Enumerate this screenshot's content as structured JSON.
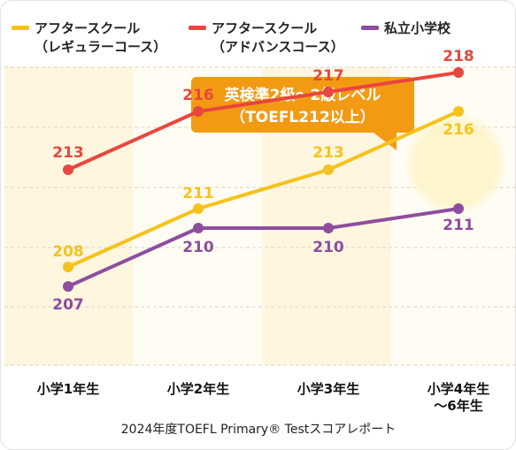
{
  "chart_data": {
    "type": "line",
    "categories": [
      "小学1年生",
      "小学2年生",
      "小学3年生",
      [
        "小学4年生",
        "～6年生"
      ]
    ],
    "series": [
      {
        "name": [
          "アフタースクール",
          "（レギュラーコース）"
        ],
        "color": "#f6c21b",
        "values": [
          208,
          211,
          213,
          216
        ]
      },
      {
        "name": [
          "アフタースクール",
          "（アドバンスコース）"
        ],
        "color": "#e8463e",
        "values": [
          213,
          216,
          217,
          218
        ]
      },
      {
        "name": [
          "私立小学校"
        ],
        "color": "#8e4d9e",
        "values": [
          207,
          210,
          210,
          211
        ]
      }
    ],
    "annotation": [
      "英検準2級～2級レベル",
      "（TOEFL212以上）"
    ],
    "annotation_color": "#f39a13",
    "highlight_color": "#fff5cc",
    "ylim": [
      203,
      223
    ],
    "grid": true,
    "legend_position": "top",
    "footnote": "2024年度TOEFL Primary® Testスコアレポート"
  }
}
